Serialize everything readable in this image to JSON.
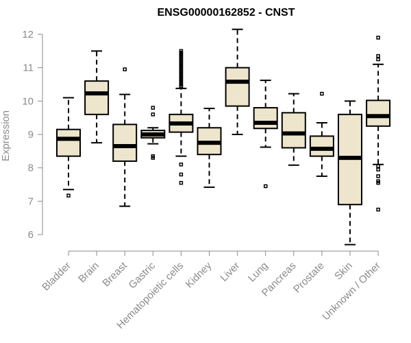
{
  "chart_data": {
    "type": "boxplot",
    "title": "ENSG00000162852 - CNST",
    "xlabel": "",
    "ylabel": "Expression",
    "ylim": [
      5.6,
      12.2
    ],
    "yticks": [
      6,
      7,
      8,
      9,
      10,
      11,
      12
    ],
    "grid": false,
    "box_fill": "#ede5cc",
    "axis_color": "#8a8a8a",
    "categories": [
      "Bladder",
      "Brain",
      "Breast",
      "Gastric",
      "Hematopoietic cells",
      "Kidney",
      "Liver",
      "Lung",
      "Pancreas",
      "Prostate",
      "Skin",
      "Unknown / Other"
    ],
    "boxes": [
      {
        "min": 7.35,
        "q1": 8.35,
        "median": 8.87,
        "q3": 9.15,
        "max": 10.1,
        "outliers": [
          7.17
        ]
      },
      {
        "min": 8.75,
        "q1": 9.6,
        "median": 10.23,
        "q3": 10.6,
        "max": 11.5,
        "outliers": []
      },
      {
        "min": 6.85,
        "q1": 8.2,
        "median": 8.65,
        "q3": 9.3,
        "max": 10.2,
        "outliers": [
          10.95
        ]
      },
      {
        "min": 8.72,
        "q1": 8.9,
        "median": 9.0,
        "q3": 9.12,
        "max": 9.2,
        "outliers": [
          9.8,
          9.6,
          8.35,
          8.3
        ]
      },
      {
        "min": 8.35,
        "q1": 9.07,
        "median": 9.33,
        "q3": 9.6,
        "max": 10.38,
        "outliers": [
          11.5,
          11.45,
          11.4,
          11.35,
          11.3,
          11.25,
          11.2,
          11.15,
          11.1,
          11.05,
          11.0,
          10.95,
          10.9,
          10.85,
          10.8,
          10.75,
          10.7,
          10.65,
          10.6,
          10.55,
          10.5,
          10.45,
          10.42,
          8.1,
          7.8,
          7.55
        ]
      },
      {
        "min": 7.42,
        "q1": 8.4,
        "median": 8.75,
        "q3": 9.2,
        "max": 9.78,
        "outliers": []
      },
      {
        "min": 9.0,
        "q1": 9.85,
        "median": 10.58,
        "q3": 11.0,
        "max": 12.15,
        "outliers": []
      },
      {
        "min": 8.62,
        "q1": 9.18,
        "median": 9.35,
        "q3": 9.8,
        "max": 10.62,
        "outliers": [
          7.45
        ]
      },
      {
        "min": 8.08,
        "q1": 8.6,
        "median": 9.03,
        "q3": 9.65,
        "max": 10.22,
        "outliers": []
      },
      {
        "min": 7.75,
        "q1": 8.35,
        "median": 8.57,
        "q3": 8.95,
        "max": 9.35,
        "outliers": [
          10.22
        ]
      },
      {
        "min": 5.7,
        "q1": 6.9,
        "median": 8.3,
        "q3": 9.6,
        "max": 10.0,
        "outliers": []
      },
      {
        "min": 8.1,
        "q1": 9.25,
        "median": 9.55,
        "q3": 10.02,
        "max": 11.1,
        "outliers": [
          11.9,
          11.35,
          11.25,
          8.05,
          7.95,
          7.75,
          7.6,
          7.55,
          6.75
        ]
      }
    ]
  }
}
